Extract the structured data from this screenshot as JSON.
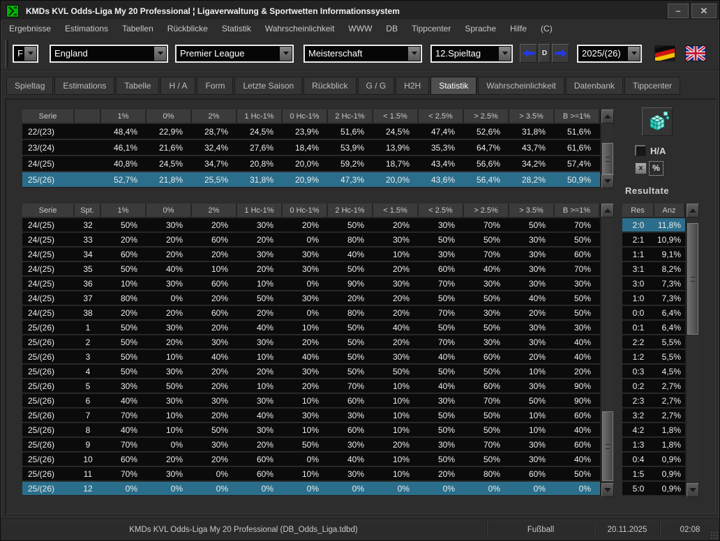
{
  "window": {
    "title": "KMDs KVL Odds-Liga My 20 Professional  ¦  Ligaverwaltung & Sportwetten Informationssystem",
    "minimize_glyph": "–",
    "close_glyph": "✕"
  },
  "menu": [
    "Ergebnisse",
    "Estimations",
    "Tabellen",
    "Rückblicke",
    "Statistik",
    "Wahrscheinlichkeit",
    "WWW",
    "DB",
    "Tippcenter",
    "Sprache",
    "Hilfe",
    "(C)"
  ],
  "toolbar": {
    "sport_code": "F",
    "country": "England",
    "league": "Premier League",
    "competition": "Meisterschaft",
    "matchday": "12.Spieltag",
    "day_button": "D",
    "season": "2025/(26)",
    "flags": [
      "german-flag",
      "uk-flag"
    ]
  },
  "tabs": {
    "items": [
      "Spieltag",
      "Estimations",
      "Tabelle",
      "H / A",
      "Form",
      "Letzte Saison",
      "Rückblick",
      "G / G",
      "H2H",
      "Statistik",
      "Wahrscheinlichkeit",
      "Datenbank",
      "Tippcenter"
    ],
    "active": "Statistik",
    "active_index": 9
  },
  "upper_table": {
    "headers": [
      "Serie",
      "",
      "1%",
      "0%",
      "2%",
      "1 Hc-1%",
      "0 Hc-1%",
      "2 Hc-1%",
      "< 1.5%",
      "< 2.5%",
      "> 2.5%",
      "> 3.5%",
      "B >=1%"
    ],
    "rows": [
      [
        "22/(23)",
        "",
        "48,4%",
        "22,9%",
        "28,7%",
        "24,5%",
        "23,9%",
        "51,6%",
        "24,5%",
        "47,4%",
        "52,6%",
        "31,8%",
        "51,6%"
      ],
      [
        "23/(24)",
        "",
        "46,1%",
        "21,6%",
        "32,4%",
        "27,6%",
        "18,4%",
        "53,9%",
        "13,9%",
        "35,3%",
        "64,7%",
        "43,7%",
        "61,6%"
      ],
      [
        "24/(25)",
        "",
        "40,8%",
        "24,5%",
        "34,7%",
        "20,8%",
        "20,0%",
        "59,2%",
        "18,7%",
        "43,4%",
        "56,6%",
        "34,2%",
        "57,4%"
      ],
      [
        "25/(26)",
        "",
        "52,7%",
        "21,8%",
        "25,5%",
        "31,8%",
        "20,9%",
        "47,3%",
        "20,0%",
        "43,6%",
        "56,4%",
        "28,2%",
        "50,9%"
      ]
    ],
    "selected_index": 3
  },
  "lower_table": {
    "headers": [
      "Serie",
      "Spt.",
      "1%",
      "0%",
      "2%",
      "1 Hc-1%",
      "0 Hc-1%",
      "2 Hc-1%",
      "< 1.5%",
      "< 2.5%",
      "> 2.5%",
      "> 3.5%",
      "B >=1%"
    ],
    "rows": [
      [
        "24/(25)",
        "32",
        "50%",
        "30%",
        "20%",
        "30%",
        "20%",
        "50%",
        "20%",
        "30%",
        "70%",
        "50%",
        "70%"
      ],
      [
        "24/(25)",
        "33",
        "20%",
        "20%",
        "60%",
        "20%",
        "0%",
        "80%",
        "30%",
        "50%",
        "50%",
        "30%",
        "50%"
      ],
      [
        "24/(25)",
        "34",
        "60%",
        "20%",
        "20%",
        "30%",
        "30%",
        "40%",
        "10%",
        "30%",
        "70%",
        "30%",
        "60%"
      ],
      [
        "24/(25)",
        "35",
        "50%",
        "40%",
        "10%",
        "20%",
        "30%",
        "50%",
        "20%",
        "60%",
        "40%",
        "30%",
        "70%"
      ],
      [
        "24/(25)",
        "36",
        "10%",
        "30%",
        "60%",
        "10%",
        "0%",
        "90%",
        "30%",
        "70%",
        "30%",
        "30%",
        "30%"
      ],
      [
        "24/(25)",
        "37",
        "80%",
        "0%",
        "20%",
        "50%",
        "30%",
        "20%",
        "20%",
        "50%",
        "50%",
        "40%",
        "50%"
      ],
      [
        "24/(25)",
        "38",
        "20%",
        "20%",
        "60%",
        "20%",
        "0%",
        "80%",
        "20%",
        "70%",
        "30%",
        "20%",
        "50%"
      ],
      [
        "25/(26)",
        "1",
        "50%",
        "30%",
        "20%",
        "40%",
        "10%",
        "50%",
        "40%",
        "50%",
        "50%",
        "30%",
        "30%"
      ],
      [
        "25/(26)",
        "2",
        "50%",
        "20%",
        "30%",
        "30%",
        "20%",
        "50%",
        "20%",
        "70%",
        "30%",
        "30%",
        "40%"
      ],
      [
        "25/(26)",
        "3",
        "50%",
        "10%",
        "40%",
        "10%",
        "40%",
        "50%",
        "30%",
        "40%",
        "60%",
        "20%",
        "40%"
      ],
      [
        "25/(26)",
        "4",
        "50%",
        "30%",
        "20%",
        "20%",
        "30%",
        "50%",
        "50%",
        "50%",
        "50%",
        "10%",
        "20%"
      ],
      [
        "25/(26)",
        "5",
        "30%",
        "50%",
        "20%",
        "10%",
        "20%",
        "70%",
        "10%",
        "40%",
        "60%",
        "30%",
        "90%"
      ],
      [
        "25/(26)",
        "6",
        "40%",
        "30%",
        "30%",
        "30%",
        "10%",
        "60%",
        "10%",
        "30%",
        "70%",
        "50%",
        "90%"
      ],
      [
        "25/(26)",
        "7",
        "70%",
        "10%",
        "20%",
        "40%",
        "30%",
        "30%",
        "10%",
        "50%",
        "50%",
        "10%",
        "60%"
      ],
      [
        "25/(26)",
        "8",
        "40%",
        "10%",
        "50%",
        "30%",
        "10%",
        "60%",
        "10%",
        "50%",
        "50%",
        "10%",
        "40%"
      ],
      [
        "25/(26)",
        "9",
        "70%",
        "0%",
        "30%",
        "20%",
        "50%",
        "30%",
        "20%",
        "30%",
        "70%",
        "30%",
        "60%"
      ],
      [
        "25/(26)",
        "10",
        "60%",
        "20%",
        "20%",
        "60%",
        "0%",
        "40%",
        "10%",
        "50%",
        "50%",
        "30%",
        "40%"
      ],
      [
        "25/(26)",
        "11",
        "70%",
        "30%",
        "0%",
        "60%",
        "10%",
        "30%",
        "10%",
        "20%",
        "80%",
        "60%",
        "50%"
      ],
      [
        "25/(26)",
        "12",
        "0%",
        "0%",
        "0%",
        "0%",
        "0%",
        "0%",
        "0%",
        "0%",
        "0%",
        "0%",
        "0%"
      ]
    ],
    "selected_index": 18
  },
  "side_panel": {
    "ha_label": "H/A",
    "x_button": "x",
    "percent_button": "%",
    "resultate_label": "Resultate",
    "results_table": {
      "headers": [
        "Res",
        "Anz"
      ],
      "rows": [
        [
          "2:0",
          "11,8%"
        ],
        [
          "2:1",
          "10,9%"
        ],
        [
          "1:1",
          "9,1%"
        ],
        [
          "3:1",
          "8,2%"
        ],
        [
          "3:0",
          "7,3%"
        ],
        [
          "1:0",
          "7,3%"
        ],
        [
          "0:0",
          "6,4%"
        ],
        [
          "0:1",
          "6,4%"
        ],
        [
          "2:2",
          "5,5%"
        ],
        [
          "1:2",
          "5,5%"
        ],
        [
          "0:3",
          "4,5%"
        ],
        [
          "0:2",
          "2,7%"
        ],
        [
          "2:3",
          "2,7%"
        ],
        [
          "3:2",
          "2,7%"
        ],
        [
          "4:2",
          "1,8%"
        ],
        [
          "1:3",
          "1,8%"
        ],
        [
          "0:4",
          "0,9%"
        ],
        [
          "1:5",
          "0,9%"
        ],
        [
          "5:0",
          "0,9%"
        ]
      ],
      "selected_index": 0
    }
  },
  "statusbar": {
    "app_info": "KMDs KVL Odds-Liga My 20 Professional  (DB_Odds_Liga.tdbd)",
    "sport": "Fußball",
    "date": "20.11.2025",
    "time": "02:08"
  },
  "colors": {
    "selection_teal": "#2a6e8b",
    "arrow_blue": "#2238e8",
    "row_black": "#0b0b0b",
    "header_gray": "#3b3b3b",
    "window_bg": "#2d2d2d"
  }
}
